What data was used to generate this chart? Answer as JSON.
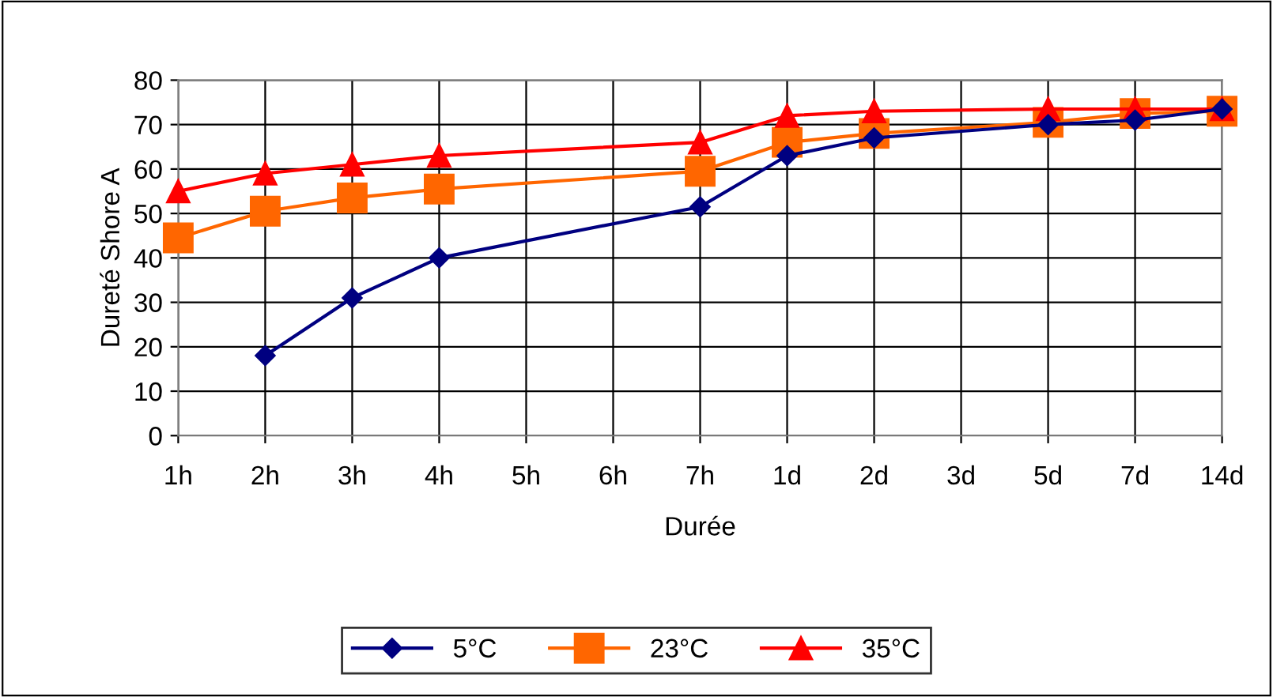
{
  "chart_data": {
    "type": "line",
    "xlabel": "Durée",
    "ylabel": "Dureté Shore A",
    "categories": [
      "1h",
      "2h",
      "3h",
      "4h",
      "5h",
      "6h",
      "7h",
      "1d",
      "2d",
      "3d",
      "5d",
      "7d",
      "14d"
    ],
    "series": [
      {
        "name": "5°C",
        "color": "#000080",
        "marker": "diamond",
        "values": [
          null,
          18,
          31,
          40,
          null,
          null,
          51.5,
          63,
          67,
          null,
          70,
          71,
          73.5
        ]
      },
      {
        "name": "23°C",
        "color": "#ff6600",
        "marker": "square",
        "values": [
          44.5,
          50.5,
          53.5,
          55.5,
          null,
          null,
          59.5,
          66,
          68,
          null,
          70.5,
          72.5,
          73
        ]
      },
      {
        "name": "35°C",
        "color": "#ff0000",
        "marker": "triangle",
        "values": [
          55,
          59,
          61,
          63,
          null,
          null,
          66,
          72,
          73,
          null,
          73.5,
          73.5,
          73.5
        ]
      }
    ],
    "ylim": [
      0,
      80
    ],
    "yticks": [
      0,
      10,
      20,
      30,
      40,
      50,
      60,
      70,
      80
    ],
    "grid": true,
    "legend": "bottom"
  }
}
